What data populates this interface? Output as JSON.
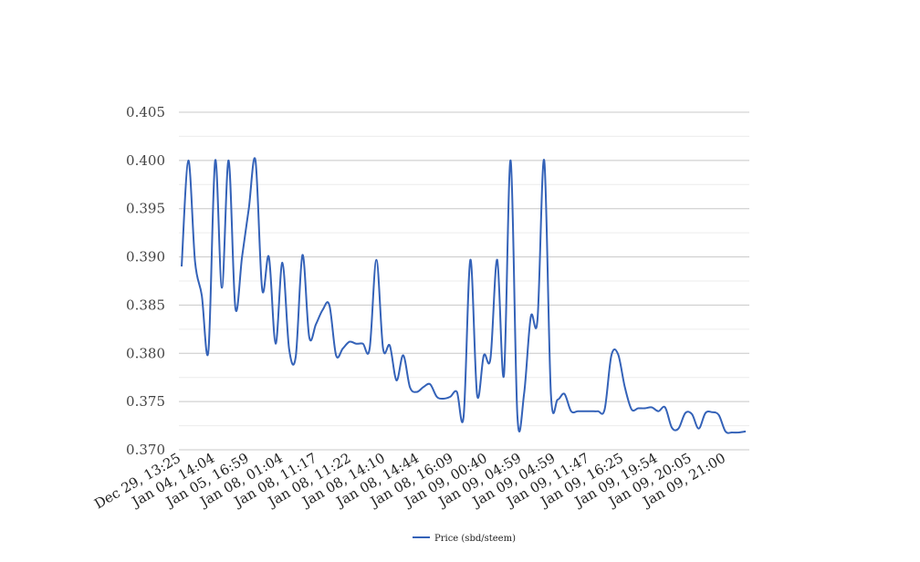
{
  "chart_data": {
    "type": "line",
    "title": "",
    "xlabel": "",
    "ylabel": "",
    "ylim": [
      0.37,
      0.405
    ],
    "yticks": [
      "0.370",
      "0.375",
      "0.380",
      "0.385",
      "0.390",
      "0.395",
      "0.400",
      "0.405"
    ],
    "minor_grid": true,
    "legend_position": "bottom-center",
    "xticks": [
      "Dec 29, 13:25",
      "Jan 04, 14:04",
      "Jan 05, 16:59",
      "Jan 08, 01:04",
      "Jan 08, 11:17",
      "Jan 08, 11:22",
      "Jan 08, 14:10",
      "Jan 08, 14:44",
      "Jan 08, 16:09",
      "Jan 09, 00:40",
      "Jan 09, 04:59",
      "Jan 09, 04:59",
      "Jan 09, 11:47",
      "Jan 09, 16:25",
      "Jan 09, 19:54",
      "Jan 09, 20:05",
      "Jan 09, 21:00"
    ],
    "series": [
      {
        "name": "Price (sbd/steem)",
        "color": "#3462b8",
        "values": [
          0.389,
          0.4,
          0.3895,
          0.386,
          0.3803,
          0.4,
          0.3868,
          0.4,
          0.3847,
          0.39,
          0.395,
          0.4,
          0.3866,
          0.39,
          0.381,
          0.3894,
          0.3805,
          0.3797,
          0.3902,
          0.3817,
          0.383,
          0.3845,
          0.385,
          0.3798,
          0.3805,
          0.3812,
          0.381,
          0.381,
          0.3805,
          0.3897,
          0.3805,
          0.3808,
          0.3772,
          0.3798,
          0.3765,
          0.376,
          0.3765,
          0.3768,
          0.3755,
          0.3753,
          0.3755,
          0.376,
          0.3735,
          0.3897,
          0.3757,
          0.3798,
          0.3795,
          0.3897,
          0.3777,
          0.4,
          0.3735,
          0.3758,
          0.3838,
          0.3835,
          0.4,
          0.3758,
          0.3752,
          0.3758,
          0.374,
          0.374,
          0.374,
          0.374,
          0.374,
          0.3742,
          0.3798,
          0.3799,
          0.3765,
          0.3742,
          0.3743,
          0.3743,
          0.3744,
          0.374,
          0.3744,
          0.3723,
          0.3722,
          0.3738,
          0.3737,
          0.3722,
          0.3738,
          0.3739,
          0.3736,
          0.3719,
          0.3718,
          0.3718,
          0.3719
        ]
      }
    ]
  }
}
